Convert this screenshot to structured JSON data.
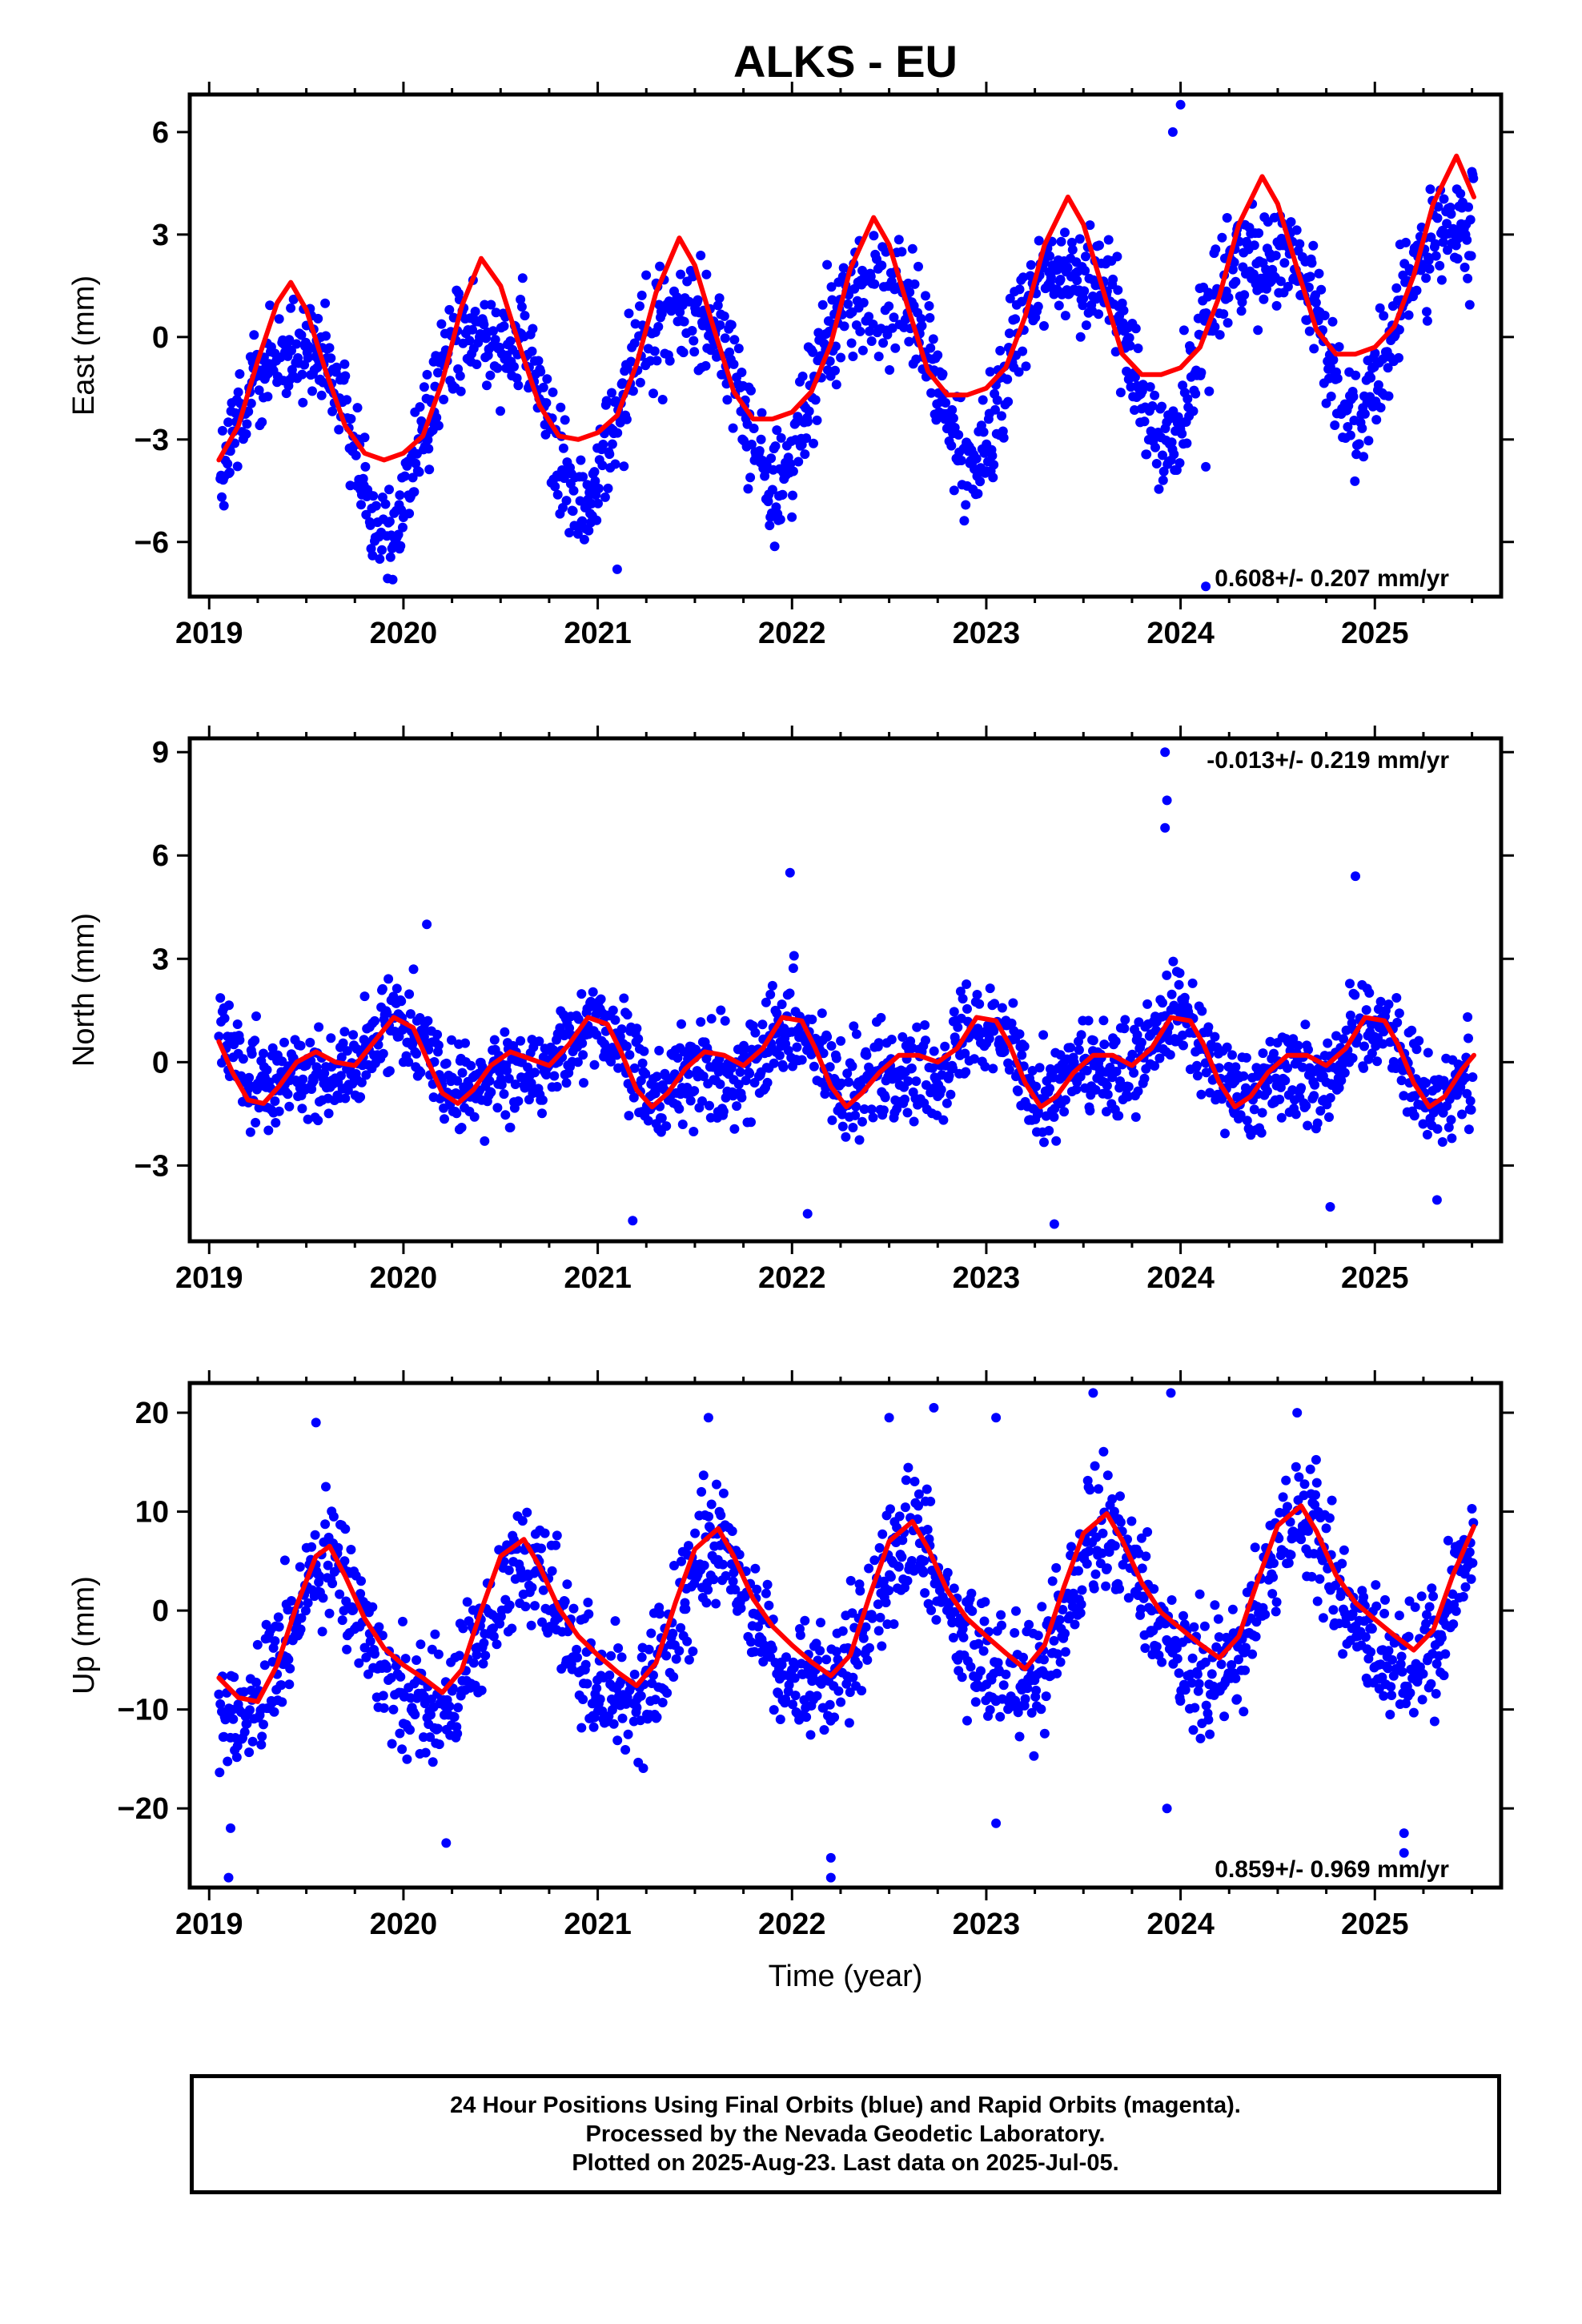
{
  "title": "ALKS - EU",
  "xlabel": "Time (year)",
  "x_tick_labels": [
    "2019",
    "2020",
    "2021",
    "2022",
    "2023",
    "2024",
    "2025"
  ],
  "colors": {
    "points": "#0000ff",
    "fit": "#ff0000",
    "frame": "#000000"
  },
  "caption": [
    "24 Hour Positions Using Final Orbits (blue) and Rapid Orbits (magenta).",
    "Processed by the Nevada Geodetic Laboratory.",
    "Plotted on 2025-Aug-23. Last data on 2025-Jul-05."
  ],
  "chart_data": [
    {
      "type": "scatter",
      "ylabel": "East (mm)",
      "velocity_label": "0.608+/- 0.207 mm/yr",
      "velocity_label_position": "bottom-right",
      "xlim": [
        2018.9,
        2025.65
      ],
      "ylim": [
        -7.6,
        7.1
      ],
      "y_ticks": [
        -6,
        -3,
        0,
        3,
        6
      ],
      "y_tick_labels": [
        "−6",
        "−3",
        "0",
        "3",
        "6"
      ],
      "x_ticks": [
        2019,
        2020,
        2021,
        2022,
        2023,
        2024,
        2025
      ],
      "series": [
        {
          "role": "daily positions",
          "style": "points",
          "seasonal": {
            "trend_mm_per_yr": 0.608,
            "offset_mm": -0.8,
            "annual_amp": 2.6,
            "annual_peak": 0.42,
            "semiannual_amp": 0.7,
            "semiannual_peak": 0.17
          },
          "scatter_mm": 1.1,
          "start_year": 2019.05,
          "end_year": 2025.51,
          "outliers": [
            [
              2024.0,
              6.8
            ],
            [
              2023.96,
              6.0
            ],
            [
              2021.1,
              -6.8
            ],
            [
              2019.98,
              -6.2
            ],
            [
              2024.13,
              -3.8
            ],
            [
              2024.13,
              -7.3
            ]
          ]
        },
        {
          "role": "model fit",
          "style": "line",
          "x": [
            2019.05,
            2019.15,
            2019.25,
            2019.35,
            2019.42,
            2019.5,
            2019.6,
            2019.7,
            2019.8,
            2019.9,
            2020.0,
            2020.1,
            2020.2,
            2020.3,
            2020.4,
            2020.5,
            2020.6,
            2020.7,
            2020.8,
            2020.9,
            2021.0,
            2021.1,
            2021.2,
            2021.3,
            2021.42,
            2021.5,
            2021.6,
            2021.7,
            2021.8,
            2021.9,
            2022.0,
            2022.1,
            2022.2,
            2022.3,
            2022.42,
            2022.5,
            2022.6,
            2022.7,
            2022.8,
            2022.9,
            2023.0,
            2023.1,
            2023.2,
            2023.3,
            2023.42,
            2023.5,
            2023.6,
            2023.7,
            2023.8,
            2023.9,
            2024.0,
            2024.1,
            2024.2,
            2024.3,
            2024.42,
            2024.5,
            2024.6,
            2024.7,
            2024.8,
            2024.9,
            2025.0,
            2025.1,
            2025.2,
            2025.3,
            2025.42,
            2025.51
          ],
          "y": [
            -3.6,
            -2.6,
            -0.7,
            1.0,
            1.6,
            0.8,
            -1.0,
            -2.6,
            -3.4,
            -3.6,
            -3.4,
            -2.9,
            -1.3,
            0.9,
            2.3,
            1.5,
            -0.3,
            -2.0,
            -2.9,
            -3.0,
            -2.8,
            -2.3,
            -0.8,
            1.3,
            2.9,
            2.1,
            0.2,
            -1.6,
            -2.4,
            -2.4,
            -2.2,
            -1.6,
            -0.2,
            2.0,
            3.5,
            2.7,
            0.8,
            -1.0,
            -1.7,
            -1.7,
            -1.5,
            -0.9,
            0.6,
            2.7,
            4.1,
            3.3,
            1.4,
            -0.5,
            -1.1,
            -1.1,
            -0.9,
            -0.3,
            1.2,
            3.3,
            4.7,
            3.9,
            2.0,
            0.2,
            -0.5,
            -0.5,
            -0.3,
            0.3,
            1.8,
            3.9,
            5.3,
            4.1
          ]
        }
      ]
    },
    {
      "type": "scatter",
      "ylabel": "North (mm)",
      "velocity_label": "-0.013+/- 0.219 mm/yr",
      "velocity_label_position": "top-right",
      "xlim": [
        2018.9,
        2025.65
      ],
      "ylim": [
        -5.2,
        9.4
      ],
      "y_ticks": [
        -3,
        0,
        3,
        6,
        9
      ],
      "y_tick_labels": [
        "−3",
        "0",
        "3",
        "6",
        "9"
      ],
      "x_ticks": [
        2019,
        2020,
        2021,
        2022,
        2023,
        2024,
        2025
      ],
      "series": [
        {
          "role": "daily positions",
          "style": "points",
          "seasonal": {
            "trend_mm_per_yr": -0.013,
            "offset_mm": 0.0,
            "annual_amp": 0.8,
            "annual_peak": 0.95,
            "semiannual_amp": 0.55,
            "semiannual_peak": 0.5
          },
          "scatter_mm": 0.95,
          "start_year": 2019.05,
          "end_year": 2025.51,
          "outliers": [
            [
              2023.93,
              7.6
            ],
            [
              2023.92,
              6.8
            ],
            [
              2023.92,
              9.0
            ],
            [
              2024.9,
              5.4
            ],
            [
              2021.99,
              5.5
            ],
            [
              2021.18,
              -4.6
            ],
            [
              2022.08,
              -4.4
            ],
            [
              2023.35,
              -4.7
            ],
            [
              2024.77,
              -4.2
            ],
            [
              2025.32,
              -4.0
            ],
            [
              2020.12,
              4.0
            ]
          ]
        },
        {
          "role": "model fit",
          "style": "line",
          "x": [
            2019.05,
            2019.12,
            2019.2,
            2019.28,
            2019.36,
            2019.45,
            2019.55,
            2019.65,
            2019.75,
            2019.85,
            2019.95,
            2020.05,
            2020.12,
            2020.2,
            2020.28,
            2020.36,
            2020.45,
            2020.55,
            2020.65,
            2020.75,
            2020.85,
            2020.95,
            2021.05,
            2021.12,
            2021.2,
            2021.28,
            2021.36,
            2021.45,
            2021.55,
            2021.65,
            2021.75,
            2021.85,
            2021.95,
            2022.05,
            2022.12,
            2022.2,
            2022.28,
            2022.36,
            2022.45,
            2022.55,
            2022.65,
            2022.75,
            2022.85,
            2022.95,
            2023.05,
            2023.12,
            2023.2,
            2023.28,
            2023.36,
            2023.45,
            2023.55,
            2023.65,
            2023.75,
            2023.85,
            2023.95,
            2024.05,
            2024.12,
            2024.2,
            2024.28,
            2024.36,
            2024.45,
            2024.55,
            2024.65,
            2024.75,
            2024.85,
            2024.95,
            2025.05,
            2025.12,
            2025.2,
            2025.28,
            2025.36,
            2025.45,
            2025.51
          ],
          "y": [
            0.6,
            -0.3,
            -1.1,
            -1.2,
            -0.7,
            0.0,
            0.3,
            0.0,
            -0.1,
            0.6,
            1.3,
            1.0,
            0.1,
            -0.9,
            -1.2,
            -0.8,
            -0.1,
            0.3,
            0.1,
            -0.1,
            0.5,
            1.3,
            1.1,
            0.3,
            -0.8,
            -1.3,
            -0.9,
            -0.2,
            0.3,
            0.2,
            -0.1,
            0.4,
            1.3,
            1.2,
            0.4,
            -0.7,
            -1.3,
            -0.9,
            -0.3,
            0.2,
            0.2,
            0.0,
            0.4,
            1.3,
            1.2,
            0.5,
            -0.6,
            -1.3,
            -1.0,
            -0.3,
            0.2,
            0.2,
            -0.1,
            0.4,
            1.3,
            1.2,
            0.5,
            -0.6,
            -1.3,
            -1.0,
            -0.3,
            0.2,
            0.2,
            -0.1,
            0.4,
            1.3,
            1.2,
            0.5,
            -0.6,
            -1.3,
            -1.0,
            -0.2,
            0.2
          ]
        }
      ]
    },
    {
      "type": "scatter",
      "ylabel": "Up (mm)",
      "xlabel": "Time (year)",
      "velocity_label": "0.859+/- 0.969 mm/yr",
      "velocity_label_position": "bottom-right",
      "xlim": [
        2018.9,
        2025.65
      ],
      "ylim": [
        -28,
        23
      ],
      "y_ticks": [
        -20,
        -10,
        0,
        10,
        20
      ],
      "y_tick_labels": [
        "−20",
        "−10",
        "0",
        "10",
        "20"
      ],
      "x_ticks": [
        2019,
        2020,
        2021,
        2022,
        2023,
        2024,
        2025
      ],
      "series": [
        {
          "role": "daily positions",
          "style": "points",
          "seasonal": {
            "trend_mm_per_yr": 0.859,
            "offset_mm": -1.5,
            "annual_amp": 7.5,
            "annual_peak": 0.62,
            "semiannual_amp": 1.2,
            "semiannual_peak": 0.1
          },
          "scatter_mm": 4.2,
          "start_year": 2019.05,
          "end_year": 2025.51,
          "outliers": [
            [
              2019.1,
              -27.0
            ],
            [
              2019.11,
              -22.0
            ],
            [
              2019.55,
              19.0
            ],
            [
              2020.22,
              -23.5
            ],
            [
              2021.57,
              19.5
            ],
            [
              2022.2,
              -27.0
            ],
            [
              2022.2,
              -25.0
            ],
            [
              2022.5,
              19.5
            ],
            [
              2022.73,
              20.5
            ],
            [
              2023.05,
              19.5
            ],
            [
              2023.05,
              -21.5
            ],
            [
              2023.55,
              22.0
            ],
            [
              2023.95,
              22.0
            ],
            [
              2023.93,
              -20.0
            ],
            [
              2024.6,
              20.0
            ],
            [
              2025.15,
              -24.5
            ],
            [
              2025.15,
              -22.5
            ]
          ]
        },
        {
          "role": "model fit",
          "style": "line",
          "x": [
            2019.05,
            2019.15,
            2019.25,
            2019.35,
            2019.45,
            2019.55,
            2019.62,
            2019.7,
            2019.8,
            2019.9,
            2020.0,
            2020.1,
            2020.2,
            2020.3,
            2020.4,
            2020.5,
            2020.62,
            2020.7,
            2020.8,
            2020.9,
            2021.0,
            2021.1,
            2021.2,
            2021.3,
            2021.4,
            2021.5,
            2021.62,
            2021.7,
            2021.8,
            2021.9,
            2022.0,
            2022.1,
            2022.2,
            2022.3,
            2022.4,
            2022.5,
            2022.62,
            2022.7,
            2022.8,
            2022.9,
            2023.0,
            2023.1,
            2023.2,
            2023.3,
            2023.4,
            2023.5,
            2023.62,
            2023.7,
            2023.8,
            2023.9,
            2024.0,
            2024.1,
            2024.2,
            2024.3,
            2024.4,
            2024.5,
            2024.62,
            2024.7,
            2024.8,
            2024.9,
            2025.0,
            2025.1,
            2025.2,
            2025.3,
            2025.4,
            2025.51
          ],
          "y": [
            -6.8,
            -8.8,
            -9.2,
            -5.5,
            0.5,
            5.5,
            6.5,
            3.5,
            -0.8,
            -3.8,
            -5.5,
            -6.8,
            -8.3,
            -6.0,
            0.0,
            5.5,
            7.2,
            4.5,
            0.2,
            -2.6,
            -4.5,
            -6.2,
            -7.6,
            -5.3,
            0.8,
            6.2,
            8.3,
            5.5,
            1.2,
            -1.6,
            -3.5,
            -5.2,
            -6.6,
            -4.5,
            1.5,
            7.0,
            9.0,
            6.3,
            2.0,
            -0.8,
            -2.6,
            -4.3,
            -5.9,
            -3.5,
            2.4,
            7.8,
            9.8,
            7.1,
            2.8,
            -0.2,
            -1.8,
            -3.4,
            -4.8,
            -2.6,
            3.2,
            8.6,
            10.6,
            8.0,
            3.6,
            0.8,
            -0.9,
            -2.5,
            -4.0,
            -2.0,
            3.5,
            8.5
          ]
        }
      ]
    }
  ]
}
